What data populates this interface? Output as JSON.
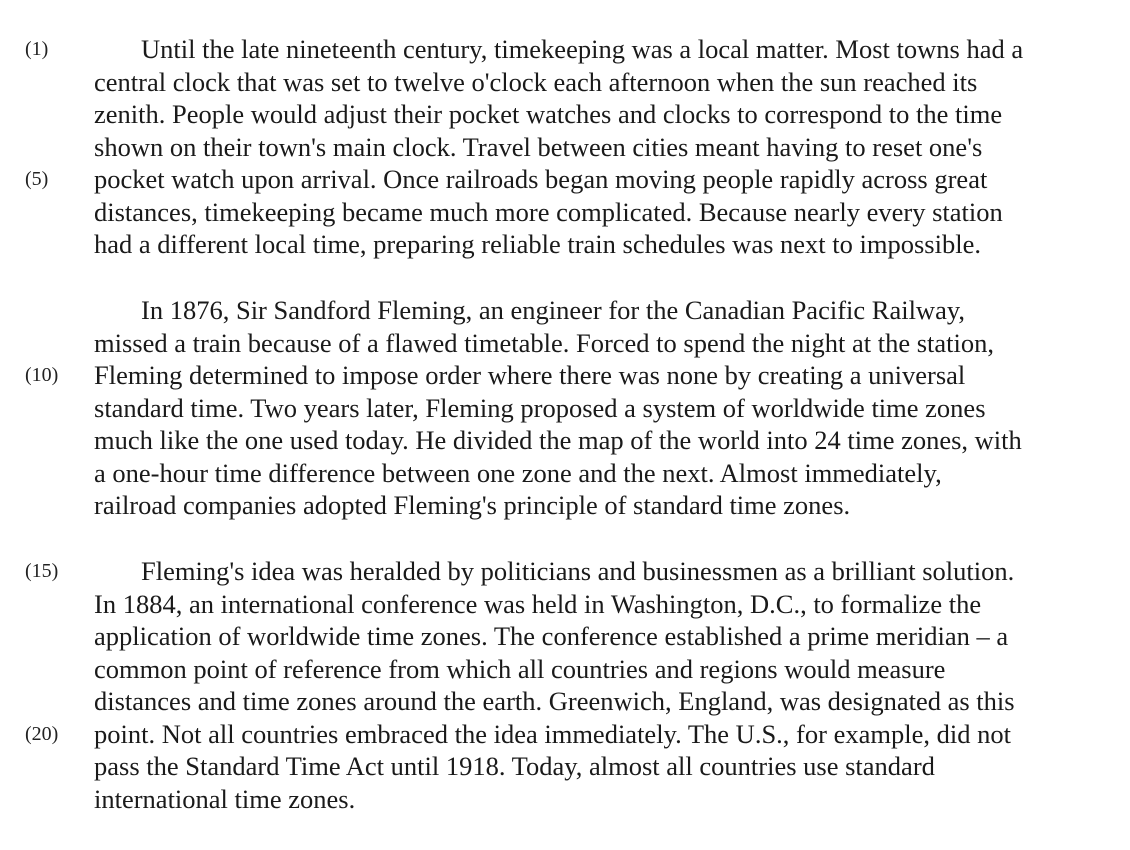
{
  "passage": {
    "lines": [
      {
        "text": "Until the late nineteenth century, timekeeping was a local matter.  Most towns had a",
        "number": "(1)"
      },
      {
        "text": "central clock that was set to twelve o'clock each afternoon when the sun reached its",
        "number": ""
      },
      {
        "text": "zenith.  People would adjust their pocket watches and clocks to correspond to the time",
        "number": ""
      },
      {
        "text": "shown on their town's main clock.  Travel between cities meant having to reset one's",
        "number": ""
      },
      {
        "text": "pocket watch upon arrival.  Once railroads began moving people rapidly across great",
        "number": "(5)"
      },
      {
        "text": "distances, timekeeping became much more complicated.  Because nearly every station",
        "number": ""
      },
      {
        "text": "had a different local time, preparing reliable train schedules was next to impossible.",
        "number": ""
      },
      {
        "text": "In 1876, Sir Sandford Fleming, an engineer for the Canadian Pacific Railway,",
        "number": ""
      },
      {
        "text": "missed a train because of a flawed timetable.  Forced to spend the night at the station,",
        "number": ""
      },
      {
        "text": "Fleming determined to impose order where there was none by creating a universal",
        "number": "(10)"
      },
      {
        "text": "standard time.  Two years later, Fleming proposed a system of worldwide time zones",
        "number": ""
      },
      {
        "text": "much like the one used today.  He divided the map of the world into 24 time zones, with",
        "number": ""
      },
      {
        "text": "a one-hour time difference between one zone and the next.  Almost immediately,",
        "number": ""
      },
      {
        "text": "railroad companies adopted Fleming's principle of standard time zones.",
        "number": ""
      },
      {
        "text": "Fleming's idea was heralded by politicians and businessmen as a brilliant solution.",
        "number": "(15)"
      },
      {
        "text": "In 1884, an international conference was held in Washington, D.C., to formalize the",
        "number": ""
      },
      {
        "text": "application of worldwide time zones.  The conference established a prime meridian – a",
        "number": ""
      },
      {
        "text": "common point of reference from which all countries and regions would measure",
        "number": ""
      },
      {
        "text": "distances and time zones around the earth.  Greenwich, England, was designated as this",
        "number": ""
      },
      {
        "text": "point.  Not all countries embraced the idea immediately.  The U.S., for example, did not",
        "number": "(20)"
      },
      {
        "text": "pass the Standard Time Act until 1918.  Today, almost all countries use standard",
        "number": ""
      },
      {
        "text": "international time zones.",
        "number": ""
      }
    ]
  }
}
